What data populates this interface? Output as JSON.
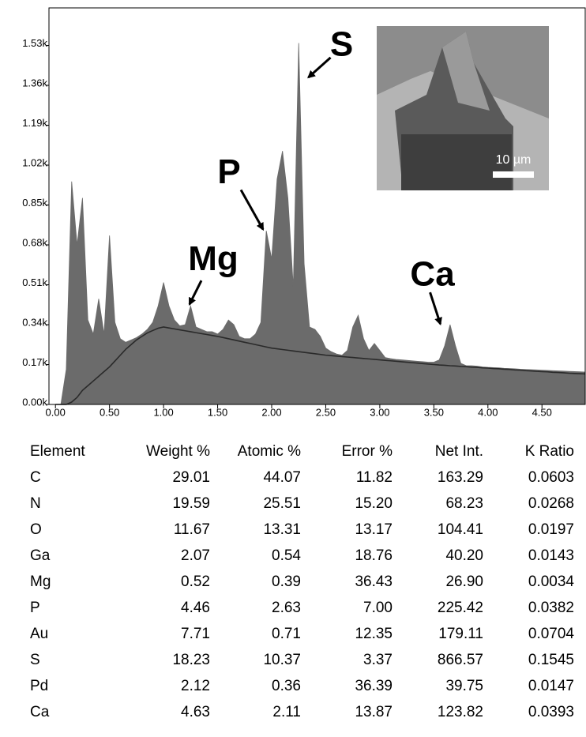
{
  "chart_data": {
    "type": "area",
    "x": [
      0,
      0.05,
      0.1,
      0.15,
      0.2,
      0.25,
      0.3,
      0.35,
      0.4,
      0.45,
      0.5,
      0.55,
      0.6,
      0.65,
      0.7,
      0.75,
      0.8,
      0.85,
      0.9,
      0.95,
      1,
      1.05,
      1.1,
      1.15,
      1.2,
      1.25,
      1.3,
      1.35,
      1.4,
      1.45,
      1.5,
      1.55,
      1.6,
      1.65,
      1.7,
      1.75,
      1.8,
      1.85,
      1.9,
      1.95,
      2,
      2.05,
      2.1,
      2.15,
      2.2,
      2.25,
      2.3,
      2.35,
      2.4,
      2.45,
      2.5,
      2.55,
      2.6,
      2.65,
      2.7,
      2.75,
      2.8,
      2.85,
      2.9,
      2.95,
      3,
      3.05,
      3.1,
      3.15,
      3.2,
      3.25,
      3.3,
      3.35,
      3.4,
      3.45,
      3.5,
      3.55,
      3.6,
      3.65,
      3.7,
      3.75,
      3.8,
      3.85,
      3.9,
      3.95,
      4,
      4.05,
      4.1,
      4.15,
      4.2,
      4.25,
      4.3,
      4.35,
      4.4,
      4.45,
      4.5,
      4.55,
      4.6,
      4.65,
      4.7,
      4.75,
      4.8,
      4.85,
      4.9
    ],
    "series": [
      {
        "style": "area",
        "color": "#6b6b6b",
        "values": [
          0,
          0,
          150,
          950,
          680,
          880,
          360,
          300,
          450,
          300,
          720,
          350,
          280,
          265,
          275,
          285,
          300,
          320,
          350,
          420,
          520,
          420,
          360,
          335,
          340,
          420,
          330,
          320,
          310,
          310,
          300,
          320,
          360,
          340,
          290,
          280,
          280,
          300,
          350,
          740,
          620,
          960,
          1080,
          880,
          500,
          1540,
          600,
          330,
          320,
          290,
          240,
          225,
          215,
          210,
          230,
          330,
          380,
          280,
          230,
          260,
          230,
          200,
          195,
          192,
          190,
          188,
          186,
          184,
          182,
          180,
          180,
          190,
          250,
          340,
          250,
          175,
          165,
          165,
          163,
          160,
          158,
          157,
          156,
          154,
          153,
          152,
          150,
          149,
          148,
          147,
          146,
          145,
          144,
          143,
          142,
          141,
          140,
          139,
          138
        ]
      },
      {
        "style": "line",
        "color": "#2a2a2a",
        "values": [
          0,
          0,
          0,
          10,
          30,
          60,
          80,
          100,
          120,
          140,
          160,
          185,
          210,
          235,
          255,
          275,
          290,
          305,
          315,
          325,
          330,
          326,
          322,
          318,
          314,
          310,
          306,
          302,
          298,
          294,
          290,
          285,
          280,
          275,
          270,
          265,
          260,
          255,
          250,
          245,
          240,
          237,
          234,
          231,
          228,
          225,
          222,
          219,
          216,
          213,
          210,
          208,
          206,
          204,
          202,
          200,
          198,
          196,
          194,
          192,
          190,
          188,
          186,
          184,
          182,
          180,
          178,
          176,
          174,
          172,
          170,
          168,
          167,
          165,
          164,
          162,
          161,
          159,
          158,
          156,
          155,
          153,
          152,
          150,
          149,
          147,
          146,
          144,
          143,
          141,
          140,
          139,
          137,
          136,
          135,
          133,
          132,
          131,
          130
        ]
      }
    ],
    "xlim": [
      -0.06,
      4.9
    ],
    "ylim": [
      0,
      1690
    ],
    "xticks": [
      {
        "value": 0,
        "label": "0.00"
      },
      {
        "value": 0.5,
        "label": "0.50"
      },
      {
        "value": 1,
        "label": "1.00"
      },
      {
        "value": 1.5,
        "label": "1.50"
      },
      {
        "value": 2,
        "label": "2.00"
      },
      {
        "value": 2.5,
        "label": "2.50"
      },
      {
        "value": 3,
        "label": "3.00"
      },
      {
        "value": 3.5,
        "label": "3.50"
      },
      {
        "value": 4,
        "label": "4.00"
      },
      {
        "value": 4.5,
        "label": "4.50"
      }
    ],
    "yticks": [
      {
        "value": 0,
        "label": "0.00k"
      },
      {
        "value": 170,
        "label": "0.17k"
      },
      {
        "value": 340,
        "label": "0.34k"
      },
      {
        "value": 510,
        "label": "0.51k"
      },
      {
        "value": 680,
        "label": "0.68k"
      },
      {
        "value": 850,
        "label": "0.85k"
      },
      {
        "value": 1020,
        "label": "1.02k"
      },
      {
        "value": 1190,
        "label": "1.19k"
      },
      {
        "value": 1360,
        "label": "1.36k"
      },
      {
        "value": 1530,
        "label": "1.53k"
      }
    ],
    "grid": false,
    "annotations": [
      {
        "text": "S",
        "x": 2.34,
        "y": 1394
      },
      {
        "text": "P",
        "x": 1.92,
        "y": 746
      },
      {
        "text": "Mg",
        "x": 1.24,
        "y": 427
      },
      {
        "text": "Ca",
        "x": 3.56,
        "y": 343
      }
    ],
    "inset": {
      "scale_label": "10 µm"
    }
  },
  "table": {
    "columns": [
      "Element",
      "Weight %",
      "Atomic %",
      "Error %",
      "Net Int.",
      "K Ratio"
    ],
    "rows": [
      [
        "C",
        "29.01",
        "44.07",
        "11.82",
        "163.29",
        "0.0603"
      ],
      [
        "N",
        "19.59",
        "25.51",
        "15.20",
        "68.23",
        "0.0268"
      ],
      [
        "O",
        "11.67",
        "13.31",
        "13.17",
        "104.41",
        "0.0197"
      ],
      [
        "Ga",
        "2.07",
        "0.54",
        "18.76",
        "40.20",
        "0.0143"
      ],
      [
        "Mg",
        "0.52",
        "0.39",
        "36.43",
        "26.90",
        "0.0034"
      ],
      [
        "P",
        "4.46",
        "2.63",
        "7.00",
        "225.42",
        "0.0382"
      ],
      [
        "Au",
        "7.71",
        "0.71",
        "12.35",
        "179.11",
        "0.0704"
      ],
      [
        "S",
        "18.23",
        "10.37",
        "3.37",
        "866.57",
        "0.1545"
      ],
      [
        "Pd",
        "2.12",
        "0.36",
        "36.39",
        "39.75",
        "0.0147"
      ],
      [
        "Ca",
        "4.63",
        "2.11",
        "13.87",
        "123.82",
        "0.0393"
      ]
    ]
  }
}
